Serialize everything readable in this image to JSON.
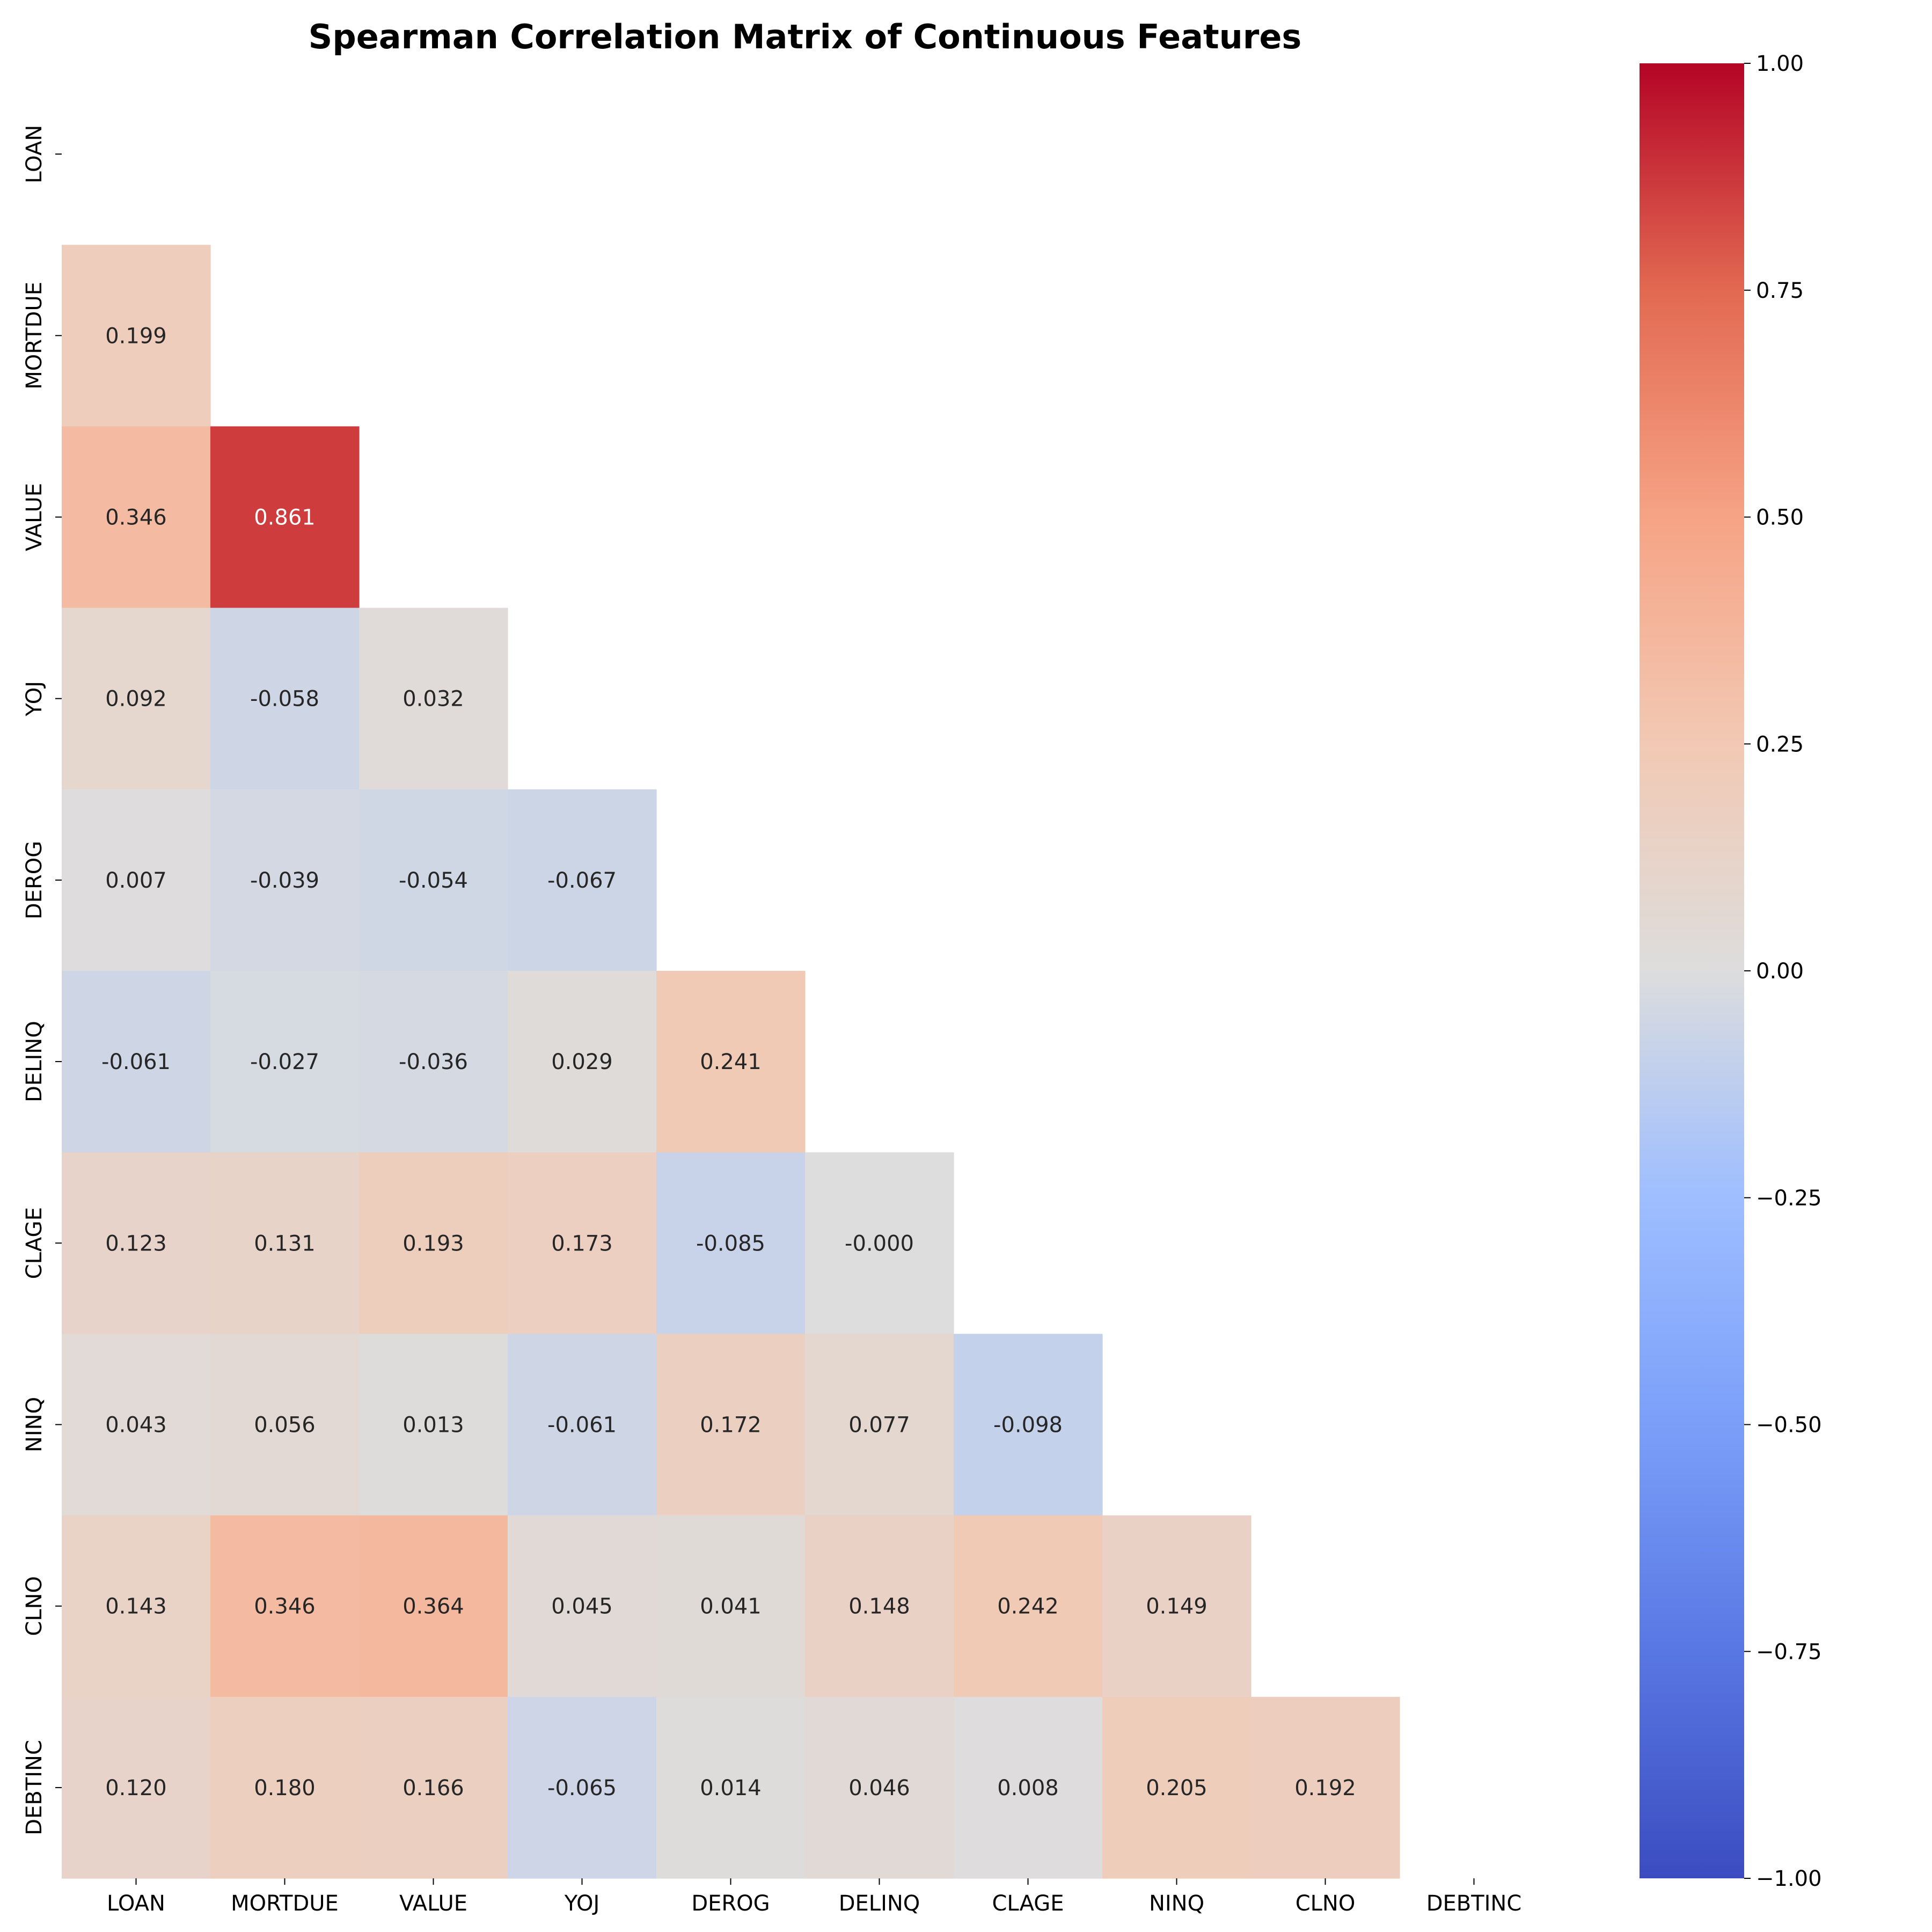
{
  "chart_data": {
    "type": "heatmap",
    "title": "Spearman Correlation Matrix of Continuous Features",
    "variables": [
      "LOAN",
      "MORTDUE",
      "VALUE",
      "YOJ",
      "DEROG",
      "DELINQ",
      "CLAGE",
      "NINQ",
      "CLNO",
      "DEBTINC"
    ],
    "mask": "upper triangle incl. diagonal",
    "lower_triangle": [
      [],
      [
        "0.199"
      ],
      [
        "0.346",
        "0.861"
      ],
      [
        "0.092",
        "-0.058",
        "0.032"
      ],
      [
        "0.007",
        "-0.039",
        "-0.054",
        "-0.067"
      ],
      [
        "-0.061",
        "-0.027",
        "-0.036",
        "0.029",
        "0.241"
      ],
      [
        "0.123",
        "0.131",
        "0.193",
        "0.173",
        "-0.085",
        "-0.000"
      ],
      [
        "0.043",
        "0.056",
        "0.013",
        "-0.061",
        "0.172",
        "0.077",
        "-0.098"
      ],
      [
        "0.143",
        "0.346",
        "0.364",
        "0.045",
        "0.041",
        "0.148",
        "0.242",
        "0.149"
      ],
      [
        "0.120",
        "0.180",
        "0.166",
        "-0.065",
        "0.014",
        "0.046",
        "0.008",
        "0.205",
        "0.192"
      ]
    ],
    "colormap": "coolwarm",
    "vmin": -1,
    "vmax": 1,
    "colorbar_ticks": [
      "1.00",
      "0.75",
      "0.50",
      "0.25",
      "0.00",
      "−0.25",
      "−0.50",
      "−0.75",
      "−1.00"
    ],
    "colorbar_tick_values": [
      1,
      0.75,
      0.5,
      0.25,
      0,
      -0.25,
      -0.5,
      -0.75,
      -1
    ]
  }
}
